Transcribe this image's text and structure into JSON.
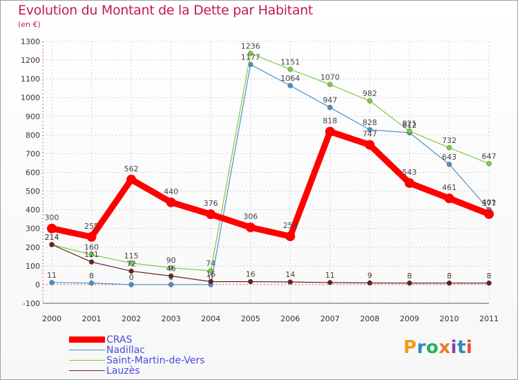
{
  "title": "Evolution du Montant de la Dette par Habitant",
  "subtitle": "(en €)",
  "logo": {
    "text": "Proxiti",
    "letters": [
      "P",
      "r",
      "o",
      "x",
      "i",
      "t",
      "i"
    ],
    "colors": [
      "#f39c12",
      "#2e86c1",
      "#27ae60",
      "#e67e22",
      "#8e44ad",
      "#2e86c1",
      "#e74c3c"
    ]
  },
  "chart_data": {
    "type": "line",
    "title": "Evolution du Montant de la Dette par Habitant",
    "ylabel": "(en €)",
    "xlabel": "",
    "categories": [
      "2000",
      "2001",
      "2002",
      "2003",
      "2004",
      "2005",
      "2006",
      "2007",
      "2008",
      "2009",
      "2010",
      "2011"
    ],
    "ylim": [
      -100,
      1300
    ],
    "yticks": [
      -100,
      0,
      100,
      200,
      300,
      400,
      500,
      600,
      700,
      800,
      900,
      1000,
      1100,
      1200,
      1300
    ],
    "grid": true,
    "legend_position": "bottom-left",
    "series": [
      {
        "name": "CRAS",
        "color": "#ff0000",
        "values": [
          300,
          255,
          562,
          440,
          376,
          306,
          258,
          818,
          747,
          543,
          461,
          377
        ],
        "labels": [
          "300",
          "255",
          "562",
          "440",
          "376",
          "306",
          "258",
          "818",
          "747",
          "543",
          "461",
          "377"
        ]
      },
      {
        "name": "Nadillac",
        "color": "#4a90c8",
        "values": [
          11,
          8,
          0,
          0,
          0,
          1177,
          1064,
          947,
          828,
          812,
          643,
          401
        ],
        "labels": [
          "11",
          "8",
          "0",
          "0",
          "0",
          "1177",
          "1064",
          "947",
          "828",
          "812",
          "643",
          "401"
        ]
      },
      {
        "name": "Saint-Martin-de-Vers",
        "color": "#7ccc3c",
        "values": [
          214,
          160,
          115,
          90,
          74,
          1236,
          1151,
          1070,
          982,
          821,
          732,
          647
        ],
        "labels": [
          "214",
          "160",
          "115",
          "90",
          "74",
          "1236",
          "1151",
          "1070",
          "982",
          "821",
          "732",
          "647"
        ]
      },
      {
        "name": "Lauzès",
        "color": "#6b1f1f",
        "values": [
          214,
          121,
          72,
          46,
          16,
          16,
          14,
          11,
          9,
          8,
          8,
          8
        ],
        "labels": [
          "214",
          "121",
          "72",
          "46",
          "16",
          "16",
          "14",
          "11",
          "9",
          "8",
          "8",
          "8"
        ]
      }
    ]
  }
}
